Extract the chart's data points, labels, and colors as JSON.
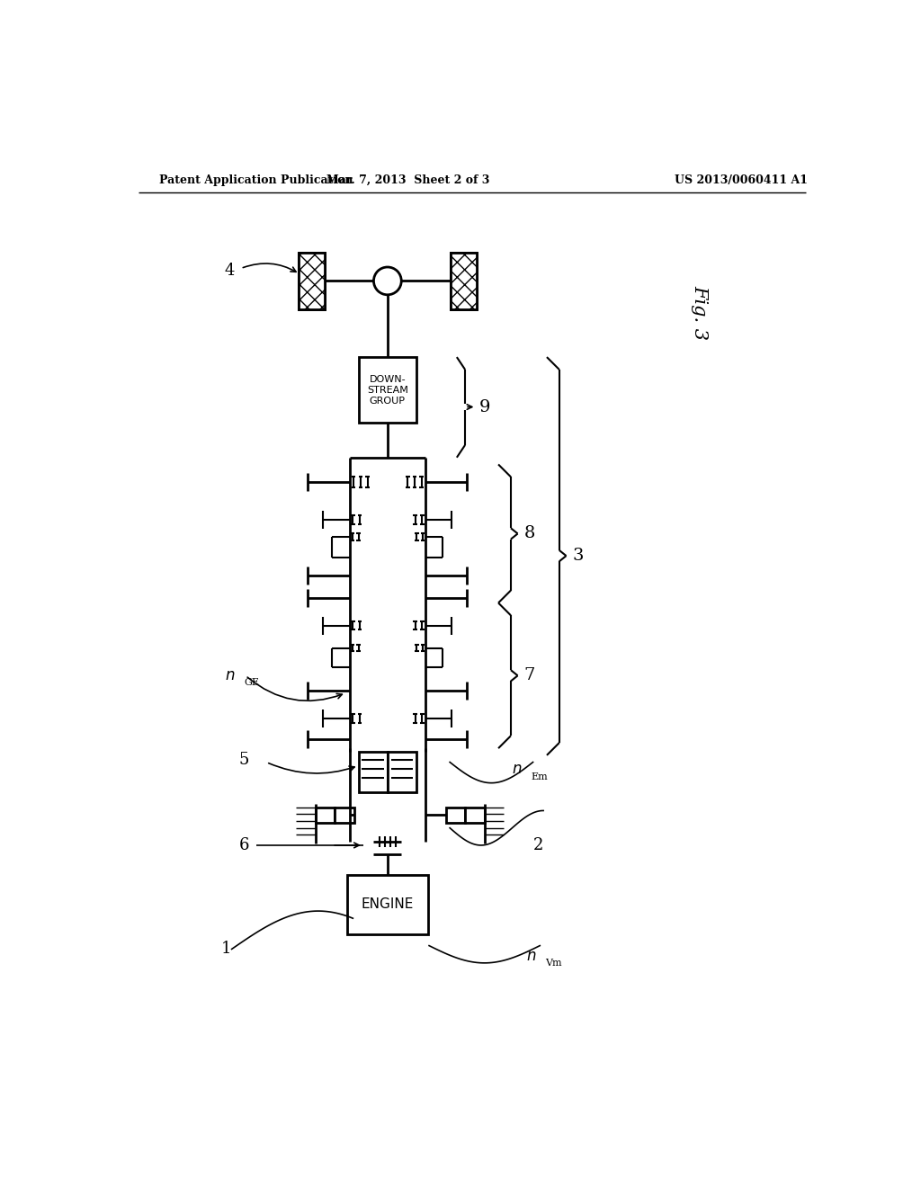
{
  "bg_color": "#ffffff",
  "header_left": "Patent Application Publication",
  "header_mid": "Mar. 7, 2013  Sheet 2 of 3",
  "header_right": "US 2013/0060411 A1",
  "engine_label": "ENGINE",
  "downstream_label": "DOWN-\nSTREAM\nGROUP"
}
